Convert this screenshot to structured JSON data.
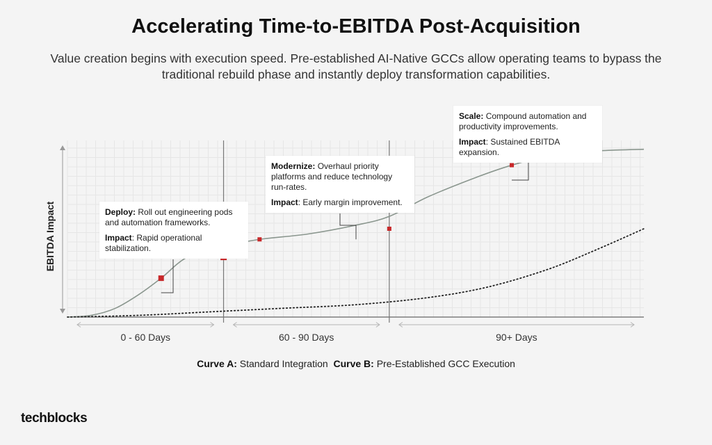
{
  "header": {
    "title": "Accelerating Time-to-EBITDA Post-Acquisition",
    "subtitle": "Value creation begins with execution speed. Pre-established AI-Native GCCs allow operating teams to bypass the traditional rebuild phase and instantly deploy transformation capabilities."
  },
  "chart_data": {
    "type": "line",
    "ylabel": "EBITDA Impact",
    "xlabel": "",
    "grid": true,
    "accent": "#c8282a",
    "phases": [
      "0 - 60 Days",
      "60 - 90 Days",
      "90+ Days"
    ],
    "series": [
      {
        "name": "Curve B: Pre-Established GCC Execution",
        "style": "solid",
        "color": "#8a968e",
        "points": [
          [
            0,
            0
          ],
          [
            0.1,
            0.01
          ],
          [
            0.2,
            0.05
          ],
          [
            0.3,
            0.13
          ],
          [
            0.39,
            0.22
          ],
          [
            0.5,
            0.34
          ],
          [
            0.65,
            0.4
          ],
          [
            0.8,
            0.44
          ],
          [
            1.0,
            0.47
          ],
          [
            1.2,
            0.52
          ],
          [
            1.34,
            0.57
          ],
          [
            1.5,
            0.68
          ],
          [
            1.7,
            0.79
          ],
          [
            1.85,
            0.86
          ],
          [
            2.0,
            0.91
          ],
          [
            2.2,
            0.94
          ],
          [
            2.4,
            0.95
          ]
        ]
      },
      {
        "name": "Curve A: Standard Integration",
        "style": "dotted",
        "color": "#222222",
        "points": [
          [
            0,
            0
          ],
          [
            0.3,
            0.01
          ],
          [
            0.6,
            0.03
          ],
          [
            0.9,
            0.05
          ],
          [
            1.2,
            0.07
          ],
          [
            1.5,
            0.11
          ],
          [
            1.75,
            0.17
          ],
          [
            2.0,
            0.27
          ],
          [
            2.2,
            0.38
          ],
          [
            2.4,
            0.5
          ]
        ]
      }
    ],
    "milestones": [
      {
        "label": "Deploy",
        "x": 0.39,
        "y": 0.22
      },
      {
        "label": "Modernize",
        "x": 0.8,
        "y": 0.44
      },
      {
        "label": "Scale",
        "x": 1.85,
        "y": 0.86
      }
    ],
    "phase_dividers": [
      0.65,
      1.34
    ]
  },
  "callouts": {
    "deploy": {
      "title": "Deploy:",
      "text": "Roll out engineering pods and automation frameworks.",
      "impact_label": "Impact",
      "impact_text": ": Rapid operational stabilization."
    },
    "modernize": {
      "title": "Modernize:",
      "text": "Overhaul priority platforms and reduce technology run-rates.",
      "impact_label": "Impact",
      "impact_text": ": Early margin improvement."
    },
    "scale": {
      "title": "Scale:",
      "text": "Compound automation and productivity improvements.",
      "impact_label": "Impact",
      "impact_text": ": Sustained EBITDA expansion."
    }
  },
  "legend": {
    "curve_a_label": "Curve A:",
    "curve_a_text": "Standard Integration",
    "curve_b_label": "Curve B:",
    "curve_b_text": "Pre-Established GCC Execution"
  },
  "brand": {
    "logo": "techblocks"
  }
}
